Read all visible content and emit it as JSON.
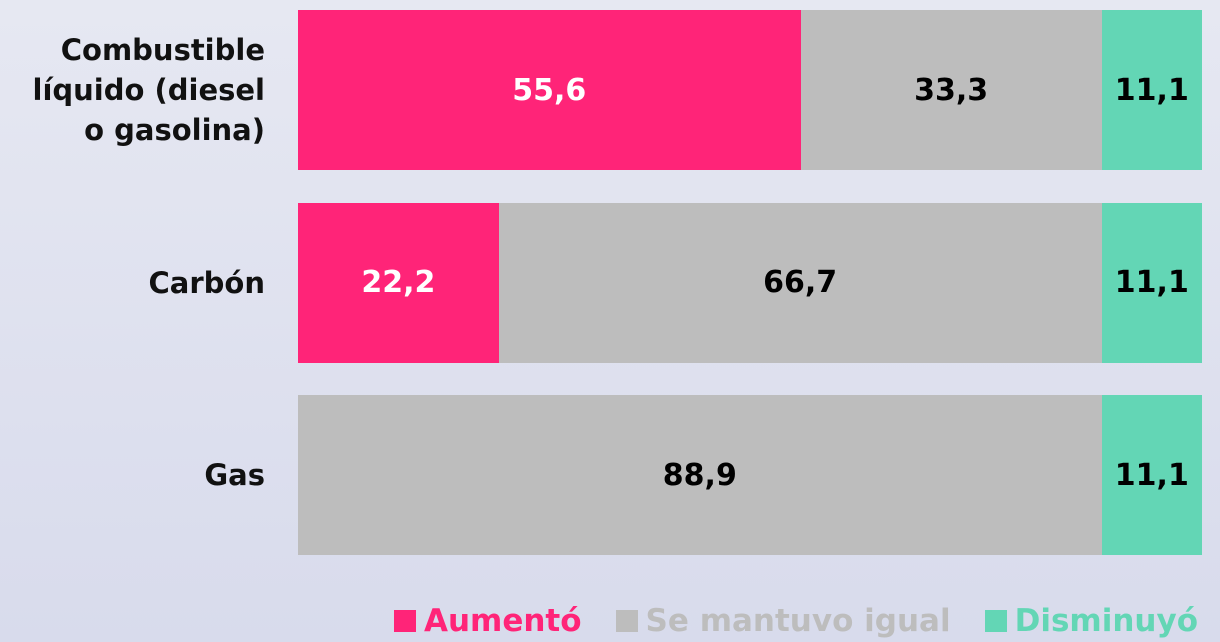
{
  "chart_data": {
    "type": "stacked-bar-horizontal",
    "categories": [
      "Combustible líquido (diesel o gasolina)",
      "Carbón",
      "Gas"
    ],
    "series": [
      {
        "name": "Aumentó",
        "color": "#ff2478",
        "label_color": "#ffffff",
        "values": [
          55.6,
          22.2,
          null
        ],
        "value_labels": [
          "55,6",
          "22,2",
          null
        ]
      },
      {
        "name": "Se mantuvo igual",
        "color": "#bdbdbd",
        "label_color": "#000000",
        "values": [
          33.3,
          66.7,
          88.9
        ],
        "value_labels": [
          "33,3",
          "66,7",
          "88,9"
        ]
      },
      {
        "name": "Disminuyó",
        "color": "#63d6b5",
        "label_color": "#000000",
        "values": [
          11.1,
          11.1,
          11.1
        ],
        "value_labels": [
          "11,1",
          "11,1",
          "11,1"
        ]
      }
    ],
    "xlim": [
      0,
      100
    ],
    "legend": "bottom"
  }
}
